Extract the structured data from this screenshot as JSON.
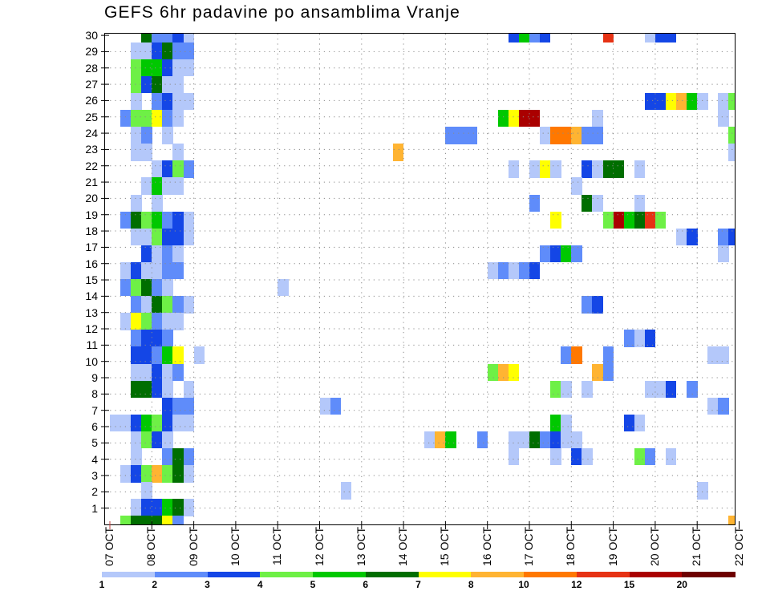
{
  "chart_data": {
    "type": "heatmap",
    "title": "GEFS 6hr padavine po ansamblima Vranje",
    "xlabel": "",
    "ylabel": "",
    "x_tick_labels": [
      "07 OCT",
      "08 OCT",
      "09 OCT",
      "10 OCT",
      "11 OCT",
      "12 OCT",
      "13 OCT",
      "14 OCT",
      "15 OCT",
      "16 OCT",
      "17 OCT",
      "18 OCT",
      "19 OCT",
      "20 OCT",
      "21 OCT",
      "22 OCT"
    ],
    "y_tick_labels": [
      "1",
      "2",
      "3",
      "4",
      "5",
      "6",
      "7",
      "8",
      "9",
      "10",
      "11",
      "12",
      "13",
      "14",
      "15",
      "16",
      "17",
      "18",
      "19",
      "20",
      "21",
      "22",
      "23",
      "24",
      "25",
      "26",
      "27",
      "28",
      "29",
      "30"
    ],
    "steps_per_day": 4,
    "grid": true,
    "legend": {
      "placement": "bottom",
      "labels": [
        "1",
        "2",
        "3",
        "4",
        "5",
        "6",
        "7",
        "8",
        "10",
        "12",
        "15",
        "20"
      ],
      "colors": [
        "#b4c8fa",
        "#5f8cfa",
        "#1446e6",
        "#6ef046",
        "#00c800",
        "#006e00",
        "#ffff00",
        "#ffb432",
        "#ff7800",
        "#e63214",
        "#aa0000",
        "#6e0000"
      ]
    },
    "cell_format": "rows[].cells = [time_step_index, color_class_index]",
    "rows": [
      {
        "row": 29,
        "cells": [
          [
            3,
            5
          ],
          [
            4,
            1
          ],
          [
            5,
            1
          ],
          [
            6,
            2
          ],
          [
            7,
            0
          ],
          [
            38,
            2
          ],
          [
            39,
            4
          ],
          [
            40,
            1
          ],
          [
            41,
            2
          ],
          [
            47,
            9
          ],
          [
            51,
            0
          ],
          [
            52,
            2
          ],
          [
            53,
            2
          ]
        ]
      },
      {
        "row": 28,
        "cells": [
          [
            2,
            0
          ],
          [
            3,
            0
          ],
          [
            4,
            2
          ],
          [
            5,
            5
          ],
          [
            6,
            1
          ],
          [
            7,
            1
          ]
        ]
      },
      {
        "row": 27,
        "cells": [
          [
            2,
            3
          ],
          [
            3,
            4
          ],
          [
            4,
            4
          ],
          [
            5,
            2
          ],
          [
            6,
            0
          ],
          [
            7,
            0
          ]
        ]
      },
      {
        "row": 26,
        "cells": [
          [
            2,
            3
          ],
          [
            3,
            2
          ],
          [
            4,
            5
          ],
          [
            5,
            0
          ],
          [
            6,
            0
          ]
        ]
      },
      {
        "row": 25,
        "cells": [
          [
            2,
            0
          ],
          [
            4,
            1
          ],
          [
            5,
            2
          ],
          [
            6,
            0
          ],
          [
            7,
            0
          ],
          [
            51,
            2
          ],
          [
            52,
            2
          ],
          [
            53,
            6
          ],
          [
            54,
            7
          ],
          [
            55,
            4
          ],
          [
            56,
            0
          ],
          [
            58,
            0
          ],
          [
            59,
            3
          ]
        ]
      },
      {
        "row": 24,
        "cells": [
          [
            1,
            1
          ],
          [
            2,
            3
          ],
          [
            3,
            3
          ],
          [
            4,
            6
          ],
          [
            5,
            1
          ],
          [
            6,
            0
          ],
          [
            37,
            4
          ],
          [
            38,
            6
          ],
          [
            39,
            10
          ],
          [
            40,
            10
          ],
          [
            46,
            0
          ],
          [
            58,
            0
          ]
        ]
      },
      {
        "row": 23,
        "cells": [
          [
            2,
            0
          ],
          [
            3,
            1
          ],
          [
            5,
            0
          ],
          [
            32,
            1
          ],
          [
            33,
            1
          ],
          [
            34,
            1
          ],
          [
            41,
            0
          ],
          [
            42,
            8
          ],
          [
            43,
            8
          ],
          [
            44,
            7
          ],
          [
            45,
            1
          ],
          [
            46,
            1
          ],
          [
            59,
            3
          ]
        ]
      },
      {
        "row": 22,
        "cells": [
          [
            2,
            0
          ],
          [
            3,
            0
          ],
          [
            6,
            0
          ],
          [
            27,
            7
          ],
          [
            59,
            0
          ]
        ]
      },
      {
        "row": 21,
        "cells": [
          [
            4,
            0
          ],
          [
            5,
            2
          ],
          [
            6,
            3
          ],
          [
            7,
            1
          ],
          [
            38,
            0
          ],
          [
            40,
            0
          ],
          [
            41,
            6
          ],
          [
            42,
            0
          ],
          [
            45,
            2
          ],
          [
            46,
            0
          ],
          [
            47,
            5
          ],
          [
            48,
            5
          ],
          [
            50,
            0
          ]
        ]
      },
      {
        "row": 20,
        "cells": [
          [
            3,
            0
          ],
          [
            4,
            4
          ],
          [
            5,
            0
          ],
          [
            6,
            0
          ],
          [
            44,
            0
          ]
        ]
      },
      {
        "row": 19,
        "cells": [
          [
            2,
            0
          ],
          [
            4,
            0
          ],
          [
            40,
            1
          ],
          [
            45,
            5
          ],
          [
            46,
            0
          ],
          [
            50,
            0
          ]
        ]
      },
      {
        "row": 18,
        "cells": [
          [
            1,
            1
          ],
          [
            2,
            5
          ],
          [
            3,
            3
          ],
          [
            4,
            4
          ],
          [
            5,
            1
          ],
          [
            6,
            2
          ],
          [
            7,
            0
          ],
          [
            42,
            6
          ],
          [
            47,
            3
          ],
          [
            48,
            10
          ],
          [
            49,
            4
          ],
          [
            50,
            5
          ],
          [
            51,
            9
          ],
          [
            52,
            3
          ]
        ]
      },
      {
        "row": 17,
        "cells": [
          [
            2,
            0
          ],
          [
            3,
            0
          ],
          [
            4,
            3
          ],
          [
            5,
            2
          ],
          [
            6,
            2
          ],
          [
            7,
            0
          ],
          [
            54,
            0
          ],
          [
            55,
            2
          ],
          [
            58,
            1
          ],
          [
            59,
            2
          ]
        ]
      },
      {
        "row": 16,
        "cells": [
          [
            3,
            2
          ],
          [
            4,
            0
          ],
          [
            5,
            1
          ],
          [
            6,
            0
          ],
          [
            41,
            1
          ],
          [
            42,
            2
          ],
          [
            43,
            4
          ],
          [
            44,
            1
          ],
          [
            58,
            0
          ]
        ]
      },
      {
        "row": 15,
        "cells": [
          [
            1,
            0
          ],
          [
            2,
            2
          ],
          [
            3,
            0
          ],
          [
            4,
            0
          ],
          [
            5,
            1
          ],
          [
            6,
            1
          ],
          [
            36,
            0
          ],
          [
            37,
            1
          ],
          [
            38,
            0
          ],
          [
            39,
            1
          ],
          [
            40,
            2
          ]
        ]
      },
      {
        "row": 14,
        "cells": [
          [
            1,
            1
          ],
          [
            2,
            3
          ],
          [
            3,
            5
          ],
          [
            4,
            1
          ],
          [
            5,
            0
          ],
          [
            16,
            0
          ]
        ]
      },
      {
        "row": 13,
        "cells": [
          [
            2,
            1
          ],
          [
            3,
            0
          ],
          [
            4,
            5
          ],
          [
            5,
            3
          ],
          [
            6,
            1
          ],
          [
            7,
            0
          ],
          [
            45,
            1
          ],
          [
            46,
            2
          ]
        ]
      },
      {
        "row": 12,
        "cells": [
          [
            1,
            0
          ],
          [
            2,
            6
          ],
          [
            3,
            3
          ],
          [
            4,
            1
          ],
          [
            5,
            0
          ],
          [
            6,
            0
          ]
        ]
      },
      {
        "row": 11,
        "cells": [
          [
            2,
            1
          ],
          [
            3,
            2
          ],
          [
            4,
            2
          ],
          [
            5,
            1
          ],
          [
            49,
            1
          ],
          [
            50,
            0
          ],
          [
            51,
            2
          ]
        ]
      },
      {
        "row": 10,
        "cells": [
          [
            2,
            2
          ],
          [
            3,
            2
          ],
          [
            4,
            1
          ],
          [
            5,
            4
          ],
          [
            6,
            6
          ],
          [
            8,
            0
          ],
          [
            43,
            1
          ],
          [
            44,
            8
          ],
          [
            47,
            1
          ],
          [
            57,
            0
          ],
          [
            58,
            0
          ]
        ]
      },
      {
        "row": 9,
        "cells": [
          [
            2,
            0
          ],
          [
            3,
            0
          ],
          [
            4,
            2
          ],
          [
            5,
            0
          ],
          [
            6,
            1
          ],
          [
            36,
            3
          ],
          [
            37,
            7
          ],
          [
            38,
            6
          ],
          [
            46,
            7
          ],
          [
            47,
            1
          ]
        ]
      },
      {
        "row": 8,
        "cells": [
          [
            2,
            5
          ],
          [
            3,
            5
          ],
          [
            4,
            2
          ],
          [
            5,
            0
          ],
          [
            7,
            0
          ],
          [
            42,
            3
          ],
          [
            43,
            0
          ],
          [
            45,
            0
          ],
          [
            51,
            0
          ],
          [
            52,
            0
          ],
          [
            53,
            2
          ],
          [
            55,
            1
          ]
        ]
      },
      {
        "row": 7,
        "cells": [
          [
            5,
            2
          ],
          [
            6,
            1
          ],
          [
            7,
            1
          ],
          [
            20,
            0
          ],
          [
            21,
            1
          ],
          [
            57,
            0
          ],
          [
            58,
            1
          ]
        ]
      },
      {
        "row": 6,
        "cells": [
          [
            0,
            0
          ],
          [
            1,
            0
          ],
          [
            2,
            2
          ],
          [
            3,
            4
          ],
          [
            4,
            3
          ],
          [
            5,
            2
          ],
          [
            6,
            0
          ],
          [
            7,
            0
          ],
          [
            42,
            4
          ],
          [
            43,
            0
          ],
          [
            49,
            2
          ],
          [
            50,
            0
          ]
        ]
      },
      {
        "row": 5,
        "cells": [
          [
            2,
            0
          ],
          [
            3,
            3
          ],
          [
            4,
            2
          ],
          [
            5,
            0
          ],
          [
            30,
            0
          ],
          [
            31,
            7
          ],
          [
            32,
            4
          ],
          [
            35,
            1
          ],
          [
            38,
            0
          ],
          [
            39,
            0
          ],
          [
            40,
            5
          ],
          [
            41,
            1
          ],
          [
            42,
            2
          ],
          [
            43,
            0
          ],
          [
            44,
            0
          ]
        ]
      },
      {
        "row": 4,
        "cells": [
          [
            2,
            0
          ],
          [
            5,
            1
          ],
          [
            6,
            5
          ],
          [
            7,
            1
          ],
          [
            38,
            0
          ],
          [
            42,
            0
          ],
          [
            44,
            2
          ],
          [
            45,
            0
          ],
          [
            50,
            3
          ],
          [
            51,
            1
          ],
          [
            53,
            0
          ]
        ]
      },
      {
        "row": 3,
        "cells": [
          [
            1,
            0
          ],
          [
            2,
            2
          ],
          [
            3,
            3
          ],
          [
            4,
            7
          ],
          [
            5,
            3
          ],
          [
            6,
            5
          ],
          [
            7,
            0
          ]
        ]
      },
      {
        "row": 2,
        "cells": [
          [
            3,
            0
          ],
          [
            22,
            0
          ],
          [
            56,
            0
          ]
        ]
      },
      {
        "row": 1,
        "cells": [
          [
            2,
            0
          ],
          [
            3,
            2
          ],
          [
            4,
            2
          ],
          [
            5,
            4
          ],
          [
            6,
            5
          ],
          [
            7,
            0
          ]
        ]
      },
      {
        "row": 0,
        "cells": [
          [
            1,
            3
          ],
          [
            2,
            5
          ],
          [
            3,
            5
          ],
          [
            4,
            5
          ],
          [
            5,
            6
          ],
          [
            6,
            1
          ],
          [
            59,
            7
          ]
        ]
      }
    ]
  }
}
